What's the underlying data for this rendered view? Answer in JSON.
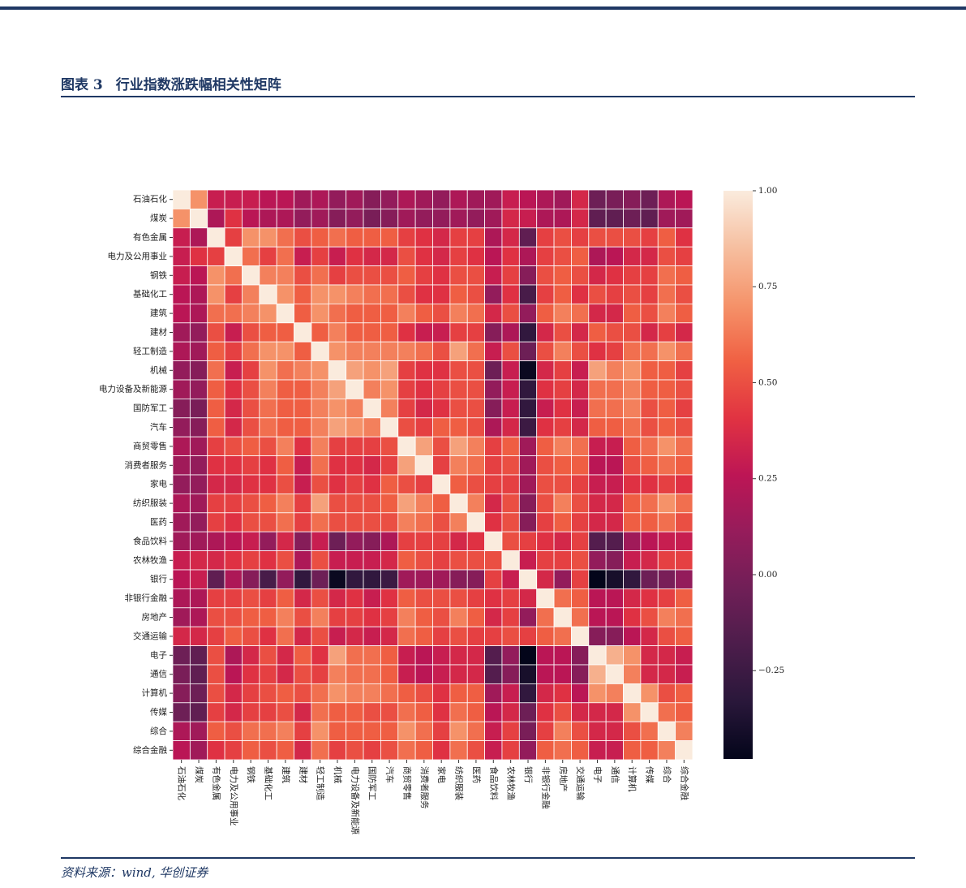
{
  "figure": {
    "label": "图表 3",
    "title": "行业指数涨跌幅相关性矩阵",
    "source": "资料来源：wind, 华创证券"
  },
  "chart_data": {
    "type": "heatmap",
    "categories": [
      "石油石化",
      "煤炭",
      "有色金属",
      "电力及公用事业",
      "钢铁",
      "基础化工",
      "建筑",
      "建材",
      "轻工制造",
      "机械",
      "电力设备及新能源",
      "国防军工",
      "汽车",
      "商贸零售",
      "消费者服务",
      "家电",
      "纺织服装",
      "医药",
      "食品饮料",
      "农林牧渔",
      "银行",
      "非银行金融",
      "房地产",
      "交通运输",
      "电子",
      "通信",
      "计算机",
      "传媒",
      "综合",
      "综合金融"
    ],
    "values": [
      [
        1,
        0.7,
        0.3,
        0.3,
        0.3,
        0.25,
        0.25,
        0.15,
        0.2,
        0.1,
        0.15,
        0.05,
        0.1,
        0.2,
        0.15,
        0.1,
        0.2,
        0.15,
        0.15,
        0.3,
        0.25,
        0.2,
        0.15,
        0.35,
        -0.05,
        0.0,
        0.05,
        -0.05,
        0.2,
        0.25
      ],
      [
        0.7,
        1,
        0.2,
        0.4,
        0.25,
        0.2,
        0.2,
        0.1,
        0.15,
        0.05,
        0.1,
        0.0,
        0.05,
        0.15,
        0.1,
        0.1,
        0.15,
        0.1,
        0.15,
        0.35,
        0.3,
        0.2,
        0.2,
        0.35,
        -0.1,
        -0.1,
        -0.05,
        -0.1,
        0.15,
        0.15
      ],
      [
        0.3,
        0.2,
        1,
        0.45,
        0.7,
        0.7,
        0.6,
        0.5,
        0.55,
        0.6,
        0.55,
        0.55,
        0.55,
        0.45,
        0.4,
        0.35,
        0.45,
        0.45,
        0.2,
        0.35,
        -0.1,
        0.45,
        0.5,
        0.45,
        0.5,
        0.5,
        0.5,
        0.45,
        0.55,
        0.4
      ],
      [
        0.3,
        0.4,
        0.45,
        1,
        0.6,
        0.45,
        0.6,
        0.3,
        0.45,
        0.3,
        0.4,
        0.35,
        0.35,
        0.5,
        0.4,
        0.35,
        0.45,
        0.4,
        0.25,
        0.4,
        0.2,
        0.45,
        0.5,
        0.55,
        0.2,
        0.25,
        0.35,
        0.35,
        0.5,
        0.45
      ],
      [
        0.3,
        0.25,
        0.7,
        0.6,
        1,
        0.65,
        0.65,
        0.5,
        0.6,
        0.45,
        0.5,
        0.5,
        0.5,
        0.55,
        0.45,
        0.4,
        0.5,
        0.5,
        0.3,
        0.45,
        0.05,
        0.5,
        0.55,
        0.5,
        0.35,
        0.4,
        0.45,
        0.45,
        0.6,
        0.55
      ],
      [
        0.25,
        0.2,
        0.7,
        0.45,
        0.65,
        1,
        0.7,
        0.55,
        0.7,
        0.7,
        0.65,
        0.6,
        0.6,
        0.5,
        0.4,
        0.4,
        0.55,
        0.5,
        0.1,
        0.4,
        -0.2,
        0.45,
        0.55,
        0.4,
        0.5,
        0.45,
        0.5,
        0.45,
        0.6,
        0.5
      ],
      [
        0.25,
        0.2,
        0.6,
        0.6,
        0.65,
        0.7,
        1,
        0.55,
        0.7,
        0.6,
        0.55,
        0.55,
        0.55,
        0.65,
        0.55,
        0.5,
        0.65,
        0.6,
        0.35,
        0.5,
        0.1,
        0.55,
        0.65,
        0.6,
        0.35,
        0.35,
        0.55,
        0.5,
        0.65,
        0.55
      ],
      [
        0.15,
        0.1,
        0.5,
        0.3,
        0.5,
        0.55,
        0.55,
        1,
        0.55,
        0.65,
        0.55,
        0.55,
        0.55,
        0.4,
        0.3,
        0.3,
        0.45,
        0.45,
        0.05,
        0.2,
        -0.3,
        0.35,
        0.5,
        0.35,
        0.55,
        0.5,
        0.5,
        0.35,
        0.45,
        0.35
      ],
      [
        0.2,
        0.15,
        0.55,
        0.45,
        0.6,
        0.7,
        0.7,
        0.55,
        1,
        0.7,
        0.65,
        0.65,
        0.65,
        0.65,
        0.6,
        0.5,
        0.75,
        0.6,
        0.3,
        0.5,
        -0.05,
        0.5,
        0.65,
        0.5,
        0.4,
        0.45,
        0.6,
        0.6,
        0.7,
        0.6
      ],
      [
        0.1,
        0.05,
        0.6,
        0.3,
        0.45,
        0.7,
        0.6,
        0.65,
        0.7,
        1,
        0.75,
        0.7,
        0.75,
        0.45,
        0.4,
        0.4,
        0.5,
        0.5,
        -0.05,
        0.3,
        -0.45,
        0.35,
        0.45,
        0.3,
        0.75,
        0.65,
        0.7,
        0.55,
        0.55,
        0.45
      ],
      [
        0.15,
        0.1,
        0.55,
        0.4,
        0.5,
        0.65,
        0.55,
        0.55,
        0.65,
        0.75,
        1,
        0.65,
        0.7,
        0.45,
        0.4,
        0.45,
        0.5,
        0.5,
        0.1,
        0.3,
        -0.3,
        0.4,
        0.45,
        0.35,
        0.6,
        0.6,
        0.65,
        0.55,
        0.55,
        0.5
      ],
      [
        0.05,
        0.0,
        0.55,
        0.35,
        0.5,
        0.6,
        0.55,
        0.55,
        0.65,
        0.7,
        0.65,
        1,
        0.65,
        0.45,
        0.35,
        0.4,
        0.5,
        0.5,
        0.05,
        0.3,
        -0.3,
        0.3,
        0.4,
        0.3,
        0.6,
        0.6,
        0.65,
        0.5,
        0.55,
        0.45
      ],
      [
        0.1,
        0.05,
        0.55,
        0.35,
        0.5,
        0.6,
        0.55,
        0.55,
        0.65,
        0.75,
        0.7,
        0.65,
        1,
        0.5,
        0.45,
        0.55,
        0.55,
        0.5,
        0.2,
        0.35,
        -0.25,
        0.4,
        0.45,
        0.35,
        0.55,
        0.55,
        0.6,
        0.5,
        0.55,
        0.5
      ],
      [
        0.2,
        0.15,
        0.45,
        0.5,
        0.55,
        0.5,
        0.65,
        0.4,
        0.65,
        0.45,
        0.45,
        0.45,
        0.5,
        1,
        0.75,
        0.5,
        0.75,
        0.65,
        0.45,
        0.55,
        0.15,
        0.55,
        0.65,
        0.6,
        0.3,
        0.3,
        0.55,
        0.6,
        0.7,
        0.6
      ],
      [
        0.15,
        0.1,
        0.4,
        0.4,
        0.45,
        0.4,
        0.55,
        0.3,
        0.6,
        0.4,
        0.4,
        0.35,
        0.45,
        0.75,
        1,
        0.45,
        0.65,
        0.6,
        0.45,
        0.5,
        0.15,
        0.5,
        0.55,
        0.55,
        0.25,
        0.25,
        0.5,
        0.55,
        0.6,
        0.55
      ],
      [
        0.1,
        0.1,
        0.35,
        0.35,
        0.4,
        0.4,
        0.5,
        0.3,
        0.5,
        0.4,
        0.45,
        0.4,
        0.55,
        0.5,
        0.45,
        1,
        0.55,
        0.5,
        0.45,
        0.45,
        0.15,
        0.5,
        0.5,
        0.45,
        0.3,
        0.3,
        0.4,
        0.4,
        0.45,
        0.4
      ],
      [
        0.2,
        0.15,
        0.45,
        0.45,
        0.5,
        0.55,
        0.65,
        0.45,
        0.75,
        0.5,
        0.5,
        0.5,
        0.55,
        0.75,
        0.65,
        0.55,
        1,
        0.65,
        0.35,
        0.5,
        0.05,
        0.5,
        0.65,
        0.5,
        0.35,
        0.35,
        0.55,
        0.6,
        0.7,
        0.6
      ],
      [
        0.15,
        0.1,
        0.45,
        0.4,
        0.5,
        0.5,
        0.6,
        0.45,
        0.6,
        0.5,
        0.5,
        0.5,
        0.5,
        0.65,
        0.6,
        0.5,
        0.65,
        1,
        0.4,
        0.5,
        0.05,
        0.45,
        0.55,
        0.45,
        0.35,
        0.35,
        0.55,
        0.55,
        0.6,
        0.5
      ],
      [
        0.15,
        0.15,
        0.2,
        0.25,
        0.3,
        0.1,
        0.35,
        0.05,
        0.3,
        -0.05,
        0.1,
        0.05,
        0.2,
        0.45,
        0.45,
        0.45,
        0.35,
        0.4,
        1,
        0.5,
        0.45,
        0.4,
        0.35,
        0.45,
        -0.15,
        -0.15,
        0.15,
        0.25,
        0.3,
        0.3
      ],
      [
        0.3,
        0.35,
        0.35,
        0.4,
        0.45,
        0.4,
        0.5,
        0.2,
        0.5,
        0.3,
        0.3,
        0.3,
        0.35,
        0.55,
        0.5,
        0.45,
        0.5,
        0.5,
        0.5,
        1,
        0.3,
        0.45,
        0.45,
        0.5,
        0.1,
        0.05,
        0.3,
        0.35,
        0.45,
        0.45
      ],
      [
        0.25,
        0.3,
        -0.1,
        0.2,
        0.05,
        -0.2,
        0.1,
        -0.3,
        -0.05,
        -0.45,
        -0.3,
        -0.3,
        -0.25,
        0.15,
        0.15,
        0.15,
        0.05,
        0.05,
        0.45,
        0.3,
        1,
        0.35,
        0.1,
        0.45,
        -0.48,
        -0.4,
        -0.3,
        -0.05,
        0.0,
        0.1
      ],
      [
        0.2,
        0.2,
        0.45,
        0.45,
        0.5,
        0.45,
        0.55,
        0.35,
        0.5,
        0.35,
        0.4,
        0.3,
        0.4,
        0.55,
        0.5,
        0.5,
        0.5,
        0.45,
        0.4,
        0.45,
        0.35,
        1,
        0.6,
        0.55,
        0.25,
        0.25,
        0.35,
        0.4,
        0.45,
        0.55
      ],
      [
        0.15,
        0.2,
        0.5,
        0.5,
        0.55,
        0.55,
        0.65,
        0.5,
        0.65,
        0.45,
        0.45,
        0.4,
        0.45,
        0.65,
        0.55,
        0.5,
        0.65,
        0.55,
        0.35,
        0.45,
        0.1,
        0.6,
        1,
        0.6,
        0.25,
        0.25,
        0.4,
        0.5,
        0.65,
        0.6
      ],
      [
        0.35,
        0.35,
        0.45,
        0.55,
        0.5,
        0.4,
        0.6,
        0.35,
        0.5,
        0.3,
        0.35,
        0.3,
        0.35,
        0.6,
        0.55,
        0.45,
        0.5,
        0.45,
        0.45,
        0.5,
        0.45,
        0.55,
        0.6,
        1,
        0.05,
        0.05,
        0.25,
        0.35,
        0.5,
        0.55
      ],
      [
        -0.05,
        -0.1,
        0.5,
        0.2,
        0.35,
        0.5,
        0.35,
        0.55,
        0.4,
        0.75,
        0.6,
        0.6,
        0.55,
        0.3,
        0.25,
        0.3,
        0.35,
        0.35,
        -0.15,
        0.1,
        -0.48,
        0.25,
        0.25,
        0.05,
        1,
        0.8,
        0.7,
        0.35,
        0.35,
        0.3
      ],
      [
        0.0,
        -0.1,
        0.5,
        0.25,
        0.4,
        0.45,
        0.35,
        0.5,
        0.45,
        0.65,
        0.6,
        0.6,
        0.55,
        0.3,
        0.25,
        0.3,
        0.35,
        0.35,
        -0.15,
        0.05,
        -0.4,
        0.25,
        0.25,
        0.05,
        0.8,
        1,
        0.65,
        0.35,
        0.35,
        0.3
      ],
      [
        0.05,
        -0.05,
        0.5,
        0.35,
        0.45,
        0.5,
        0.55,
        0.5,
        0.6,
        0.7,
        0.65,
        0.65,
        0.6,
        0.55,
        0.5,
        0.4,
        0.55,
        0.55,
        0.15,
        0.3,
        -0.3,
        0.35,
        0.4,
        0.25,
        0.7,
        0.65,
        1,
        0.7,
        0.5,
        0.55
      ],
      [
        -0.05,
        -0.1,
        0.45,
        0.35,
        0.45,
        0.45,
        0.5,
        0.35,
        0.6,
        0.55,
        0.55,
        0.5,
        0.5,
        0.6,
        0.55,
        0.4,
        0.6,
        0.55,
        0.25,
        0.35,
        -0.05,
        0.4,
        0.5,
        0.35,
        0.35,
        0.35,
        0.7,
        1,
        0.6,
        0.55
      ],
      [
        0.2,
        0.15,
        0.55,
        0.5,
        0.6,
        0.6,
        0.65,
        0.45,
        0.7,
        0.55,
        0.55,
        0.55,
        0.55,
        0.7,
        0.6,
        0.45,
        0.7,
        0.6,
        0.3,
        0.45,
        0.0,
        0.45,
        0.65,
        0.5,
        0.35,
        0.35,
        0.5,
        0.6,
        1,
        0.65
      ],
      [
        0.25,
        0.15,
        0.4,
        0.45,
        0.55,
        0.5,
        0.55,
        0.35,
        0.6,
        0.45,
        0.5,
        0.45,
        0.5,
        0.6,
        0.55,
        0.4,
        0.6,
        0.5,
        0.3,
        0.45,
        0.1,
        0.55,
        0.6,
        0.55,
        0.3,
        0.3,
        0.55,
        0.55,
        0.65,
        1
      ]
    ],
    "zlim": [
      -0.48,
      1.0
    ],
    "colorbar_ticks": [
      {
        "value": 1.0,
        "label": "1.00"
      },
      {
        "value": 0.75,
        "label": "0.75"
      },
      {
        "value": 0.5,
        "label": "0.50"
      },
      {
        "value": 0.25,
        "label": "0.25"
      },
      {
        "value": 0.0,
        "label": "0.00"
      },
      {
        "value": -0.25,
        "label": "−0.25"
      }
    ],
    "colormap": [
      "#03051a",
      "#29173a",
      "#4c1d4b",
      "#701f57",
      "#961c5b",
      "#bd1655",
      "#e13342",
      "#f06043",
      "#f5936a",
      "#f6bfa0",
      "#faebdd"
    ]
  }
}
